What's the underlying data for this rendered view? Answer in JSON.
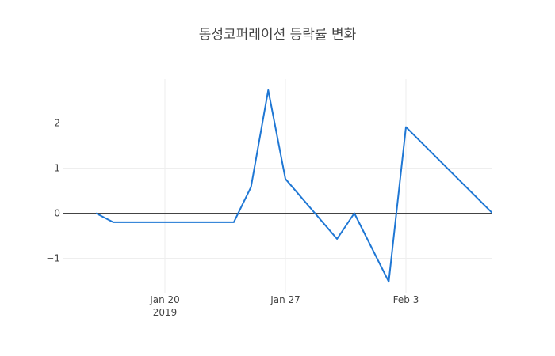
{
  "chart_data": {
    "type": "line",
    "title": "동성코퍼레이션 등락률 변화",
    "xlabel": "",
    "ylabel": "",
    "x_range": [
      "2019-01-16",
      "2019-02-07"
    ],
    "ylim": [
      -1.6,
      3.0
    ],
    "grid": true,
    "zero_line": true,
    "x_ticks": [
      {
        "date": "2019-01-20",
        "label": "Jan 20",
        "sublabel": "2019"
      },
      {
        "date": "2019-01-27",
        "label": "Jan 27",
        "sublabel": ""
      },
      {
        "date": "2019-02-03",
        "label": "Feb 3",
        "sublabel": ""
      }
    ],
    "y_ticks": [
      {
        "value": 2,
        "label": "2"
      },
      {
        "value": 1,
        "label": "1"
      },
      {
        "value": 0,
        "label": "0"
      },
      {
        "value": -1,
        "label": "−1"
      }
    ],
    "series": [
      {
        "color": "#1f77d4",
        "points": [
          {
            "x": "2019-01-16",
            "y": 0.0
          },
          {
            "x": "2019-01-17",
            "y": -0.2
          },
          {
            "x": "2019-01-24",
            "y": -0.2
          },
          {
            "x": "2019-01-25",
            "y": 0.58
          },
          {
            "x": "2019-01-26",
            "y": 2.73
          },
          {
            "x": "2019-01-27",
            "y": 0.76
          },
          {
            "x": "2019-01-30",
            "y": -0.57
          },
          {
            "x": "2019-01-31",
            "y": 0.0
          },
          {
            "x": "2019-02-02",
            "y": -1.52
          },
          {
            "x": "2019-02-03",
            "y": 1.91
          },
          {
            "x": "2019-02-09",
            "y": -0.37
          }
        ]
      }
    ]
  }
}
